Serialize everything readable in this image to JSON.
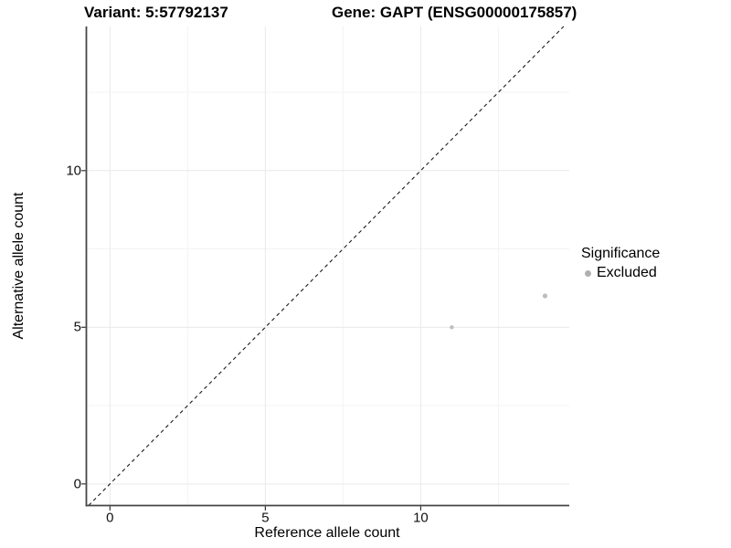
{
  "titles": {
    "variant": "Variant: 5:57792137",
    "gene": "Gene: GAPT (ENSG00000175857)"
  },
  "axes": {
    "x_label": "Reference allele count",
    "y_label": "Alternative allele count"
  },
  "legend": {
    "title": "Significance",
    "items": [
      {
        "label": "Excluded",
        "color": "#b0b0b0"
      }
    ]
  },
  "chart_data": {
    "type": "scatter",
    "title": "Variant: 5:57792137 | Gene: GAPT (ENSG00000175857)",
    "xlabel": "Reference allele count",
    "ylabel": "Alternative allele count",
    "xlim": [
      -0.76,
      14.78
    ],
    "ylim": [
      -0.69,
      14.6
    ],
    "x_ticks": [
      0,
      5,
      10
    ],
    "y_ticks": [
      0,
      5,
      10
    ],
    "x_minor_ticks": [
      2.5,
      7.5,
      12.5
    ],
    "y_minor_ticks": [
      2.5,
      7.5,
      12.5
    ],
    "grid": true,
    "legend_position": "right",
    "series": [
      {
        "name": "Excluded",
        "color": "#bdbdbd",
        "points": [
          {
            "x": 11,
            "y": 5,
            "size": 2.2
          },
          {
            "x": 14,
            "y": 6,
            "size": 2.6
          }
        ]
      }
    ],
    "reference_line": {
      "type": "identity",
      "slope": 1,
      "intercept": 0,
      "style": "dashed",
      "color": "#1a1a1a"
    }
  },
  "style": {
    "grid_major_color": "#e9e9e9",
    "grid_minor_color": "#f3f3f3",
    "axis_line_color": "#464646",
    "tick_mark_color": "#333333",
    "text_color": "#000000"
  }
}
